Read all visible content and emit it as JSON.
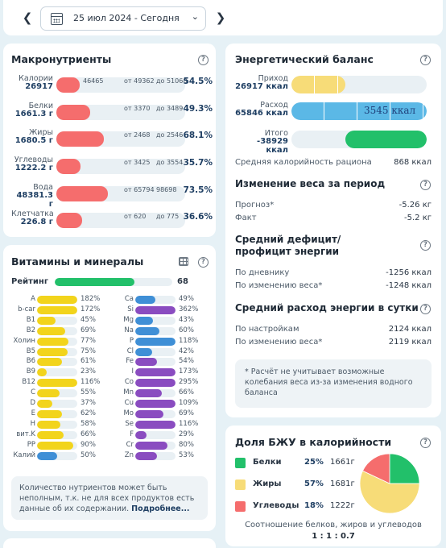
{
  "header": {
    "date_label": "25 июл 2024 - Сегодня"
  },
  "macros": {
    "title": "Макронутриенты",
    "rows": [
      {
        "name": "Калории",
        "value": "26917",
        "note_a": "46465",
        "note_b": "от 49362",
        "note_c": "до 51068",
        "percent": "54.5%",
        "fill": 0.18
      },
      {
        "name": "Белки",
        "value": "1661.3 г",
        "note_a": "",
        "note_b": "от 3370",
        "note_c": "до 3489",
        "percent": "49.3%",
        "fill": 0.26
      },
      {
        "name": "Жиры",
        "value": "1680.5 г",
        "note_a": "",
        "note_b": "от 2468",
        "note_c": "до 2546",
        "percent": "68.1%",
        "fill": 0.37
      },
      {
        "name": "Углеводы",
        "value": "1222.2 г",
        "note_a": "",
        "note_b": "от 3425",
        "note_c": "до 3554",
        "percent": "35.7%",
        "fill": 0.19
      },
      {
        "name": "Вода",
        "value": "48381.3 г",
        "note_a": "",
        "note_b": "от 65794",
        "note_c": "98698",
        "percent": "73.5%",
        "fill": 0.4
      },
      {
        "name": "Клетчатка",
        "value": "226.8 г",
        "note_a": "",
        "note_b": "от 620",
        "note_c": "до 775",
        "percent": "36.6%",
        "fill": 0.2
      }
    ]
  },
  "vitamins": {
    "title": "Витамины и минералы",
    "rating_label": "Рейтинг",
    "rating_value": "68",
    "rating_fill": 0.68,
    "left": [
      {
        "n": "A",
        "p": "182%",
        "f": 1.0,
        "c": "#f2d41c"
      },
      {
        "n": "b-car",
        "p": "172%",
        "f": 1.0,
        "c": "#f2d41c"
      },
      {
        "n": "B1",
        "p": "45%",
        "f": 0.45,
        "c": "#f2d41c"
      },
      {
        "n": "B2",
        "p": "69%",
        "f": 0.69,
        "c": "#f2d41c"
      },
      {
        "n": "Холин",
        "p": "77%",
        "f": 0.77,
        "c": "#f2d41c"
      },
      {
        "n": "B5",
        "p": "75%",
        "f": 0.75,
        "c": "#f2d41c"
      },
      {
        "n": "B6",
        "p": "61%",
        "f": 0.61,
        "c": "#f2d41c"
      },
      {
        "n": "B9",
        "p": "23%",
        "f": 0.23,
        "c": "#f2d41c"
      },
      {
        "n": "B12",
        "p": "116%",
        "f": 1.0,
        "c": "#f2d41c"
      },
      {
        "n": "C",
        "p": "55%",
        "f": 0.55,
        "c": "#f2d41c"
      },
      {
        "n": "D",
        "p": "37%",
        "f": 0.37,
        "c": "#f2d41c"
      },
      {
        "n": "E",
        "p": "62%",
        "f": 0.62,
        "c": "#f2d41c"
      },
      {
        "n": "H",
        "p": "58%",
        "f": 0.58,
        "c": "#f2d41c"
      },
      {
        "n": "вит.K",
        "p": "66%",
        "f": 0.66,
        "c": "#f2d41c"
      },
      {
        "n": "PP",
        "p": "90%",
        "f": 0.9,
        "c": "#f2d41c"
      },
      {
        "n": "Калий",
        "p": "50%",
        "f": 0.5,
        "c": "#3f8fd6"
      }
    ],
    "right": [
      {
        "n": "Ca",
        "p": "49%",
        "f": 0.49,
        "c": "#3f8fd6"
      },
      {
        "n": "Si",
        "p": "362%",
        "f": 1.0,
        "c": "#8a4cc0"
      },
      {
        "n": "Mg",
        "p": "43%",
        "f": 0.43,
        "c": "#3f8fd6"
      },
      {
        "n": "Na",
        "p": "60%",
        "f": 0.6,
        "c": "#3f8fd6"
      },
      {
        "n": "P",
        "p": "118%",
        "f": 1.0,
        "c": "#3f8fd6"
      },
      {
        "n": "Cl",
        "p": "42%",
        "f": 0.42,
        "c": "#3f8fd6"
      },
      {
        "n": "Fe",
        "p": "54%",
        "f": 0.54,
        "c": "#8a4cc0"
      },
      {
        "n": "I",
        "p": "173%",
        "f": 1.0,
        "c": "#8a4cc0"
      },
      {
        "n": "Co",
        "p": "295%",
        "f": 1.0,
        "c": "#8a4cc0"
      },
      {
        "n": "Mn",
        "p": "66%",
        "f": 0.66,
        "c": "#8a4cc0"
      },
      {
        "n": "Cu",
        "p": "109%",
        "f": 1.0,
        "c": "#8a4cc0"
      },
      {
        "n": "Mo",
        "p": "69%",
        "f": 0.69,
        "c": "#8a4cc0"
      },
      {
        "n": "Se",
        "p": "116%",
        "f": 1.0,
        "c": "#8a4cc0"
      },
      {
        "n": "F",
        "p": "29%",
        "f": 0.29,
        "c": "#8a4cc0"
      },
      {
        "n": "Cr",
        "p": "80%",
        "f": 0.8,
        "c": "#8a4cc0"
      },
      {
        "n": "Zn",
        "p": "53%",
        "f": 0.53,
        "c": "#8a4cc0"
      }
    ],
    "note_text": "Количество нутриентов может быть неполным, т.к. не для всех продуктов есть данные об их содержании.",
    "note_link": "Подробнее..."
  },
  "energy": {
    "title": "Энергетический баланс",
    "intake": {
      "name": "Приход",
      "value": "26917 ккал",
      "fill": 0.4
    },
    "expense": {
      "name": "Расход",
      "value": "65846 ккал",
      "inner": "3545 ккал",
      "fill": 1.0
    },
    "total": {
      "name": "Итого",
      "value": "-38929 ккал",
      "fill": 0.6
    },
    "avg_label": "Средняя калорийность рациона",
    "avg_value": "868 ккал"
  },
  "weight": {
    "title": "Изменение веса за период",
    "forecast_label": "Прогноз*",
    "forecast_value": "-5.26 кг",
    "fact_label": "Факт",
    "fact_value": "-5.2 кг"
  },
  "deficit": {
    "title": "Средний дефицит/профицит энергии",
    "diary_label": "По дневнику",
    "diary_value": "-1256 ккал",
    "weight_label": "По изменению веса*",
    "weight_value": "-1248 ккал"
  },
  "expense_day": {
    "title": "Средний расход энергии в сутки",
    "settings_label": "По настройкам",
    "settings_value": "2124 ккал",
    "weight_label": "По изменению веса*",
    "weight_value": "2119 ккал",
    "note": "* Расчёт не учитывает возможные колебания веса из-за изменения водного баланса"
  },
  "bju": {
    "title": "Доля БЖУ в калорийности",
    "rows": [
      {
        "name": "Белки",
        "percent": "25%",
        "grams": "1661г",
        "color": "#22c06a",
        "share": 25
      },
      {
        "name": "Жиры",
        "percent": "57%",
        "grams": "1681г",
        "color": "#f7dc78",
        "share": 57
      },
      {
        "name": "Углеводы",
        "percent": "18%",
        "grams": "1222г",
        "color": "#f56d6d",
        "share": 18
      }
    ],
    "ratio_label": "Соотношение белков, жиров и углеводов",
    "ratio_value": "1 : 1 : 0.7"
  }
}
